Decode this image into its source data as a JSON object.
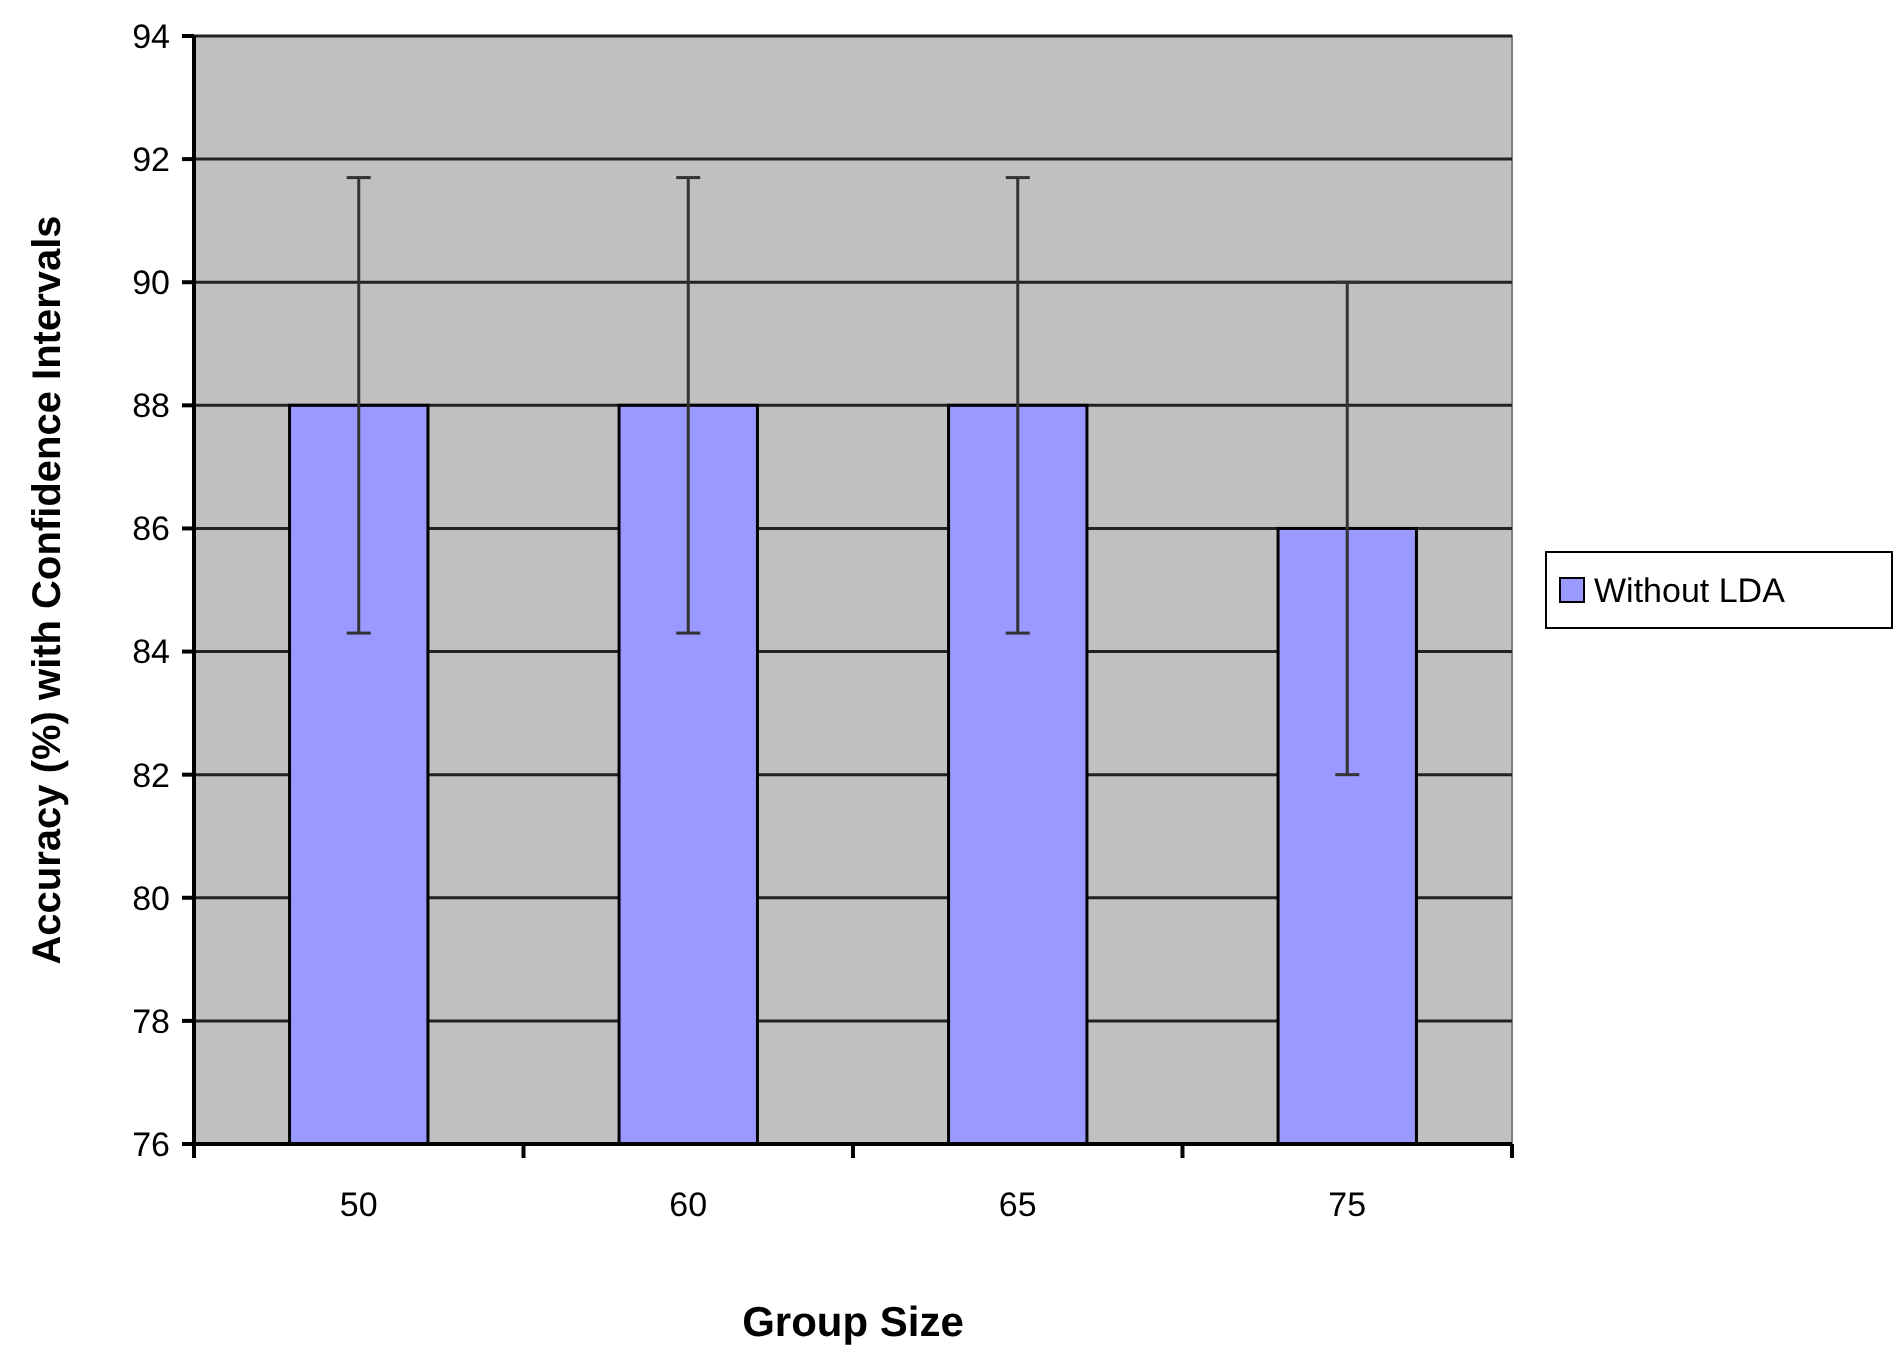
{
  "chart_data": {
    "type": "bar",
    "xlabel": "Group Size",
    "ylabel": "Accuracy (%) with Confidence Intervals",
    "categories": [
      "50",
      "60",
      "65",
      "75"
    ],
    "series": [
      {
        "name": "Without LDA",
        "color": "#9999ff",
        "values": [
          88,
          88,
          88,
          86
        ],
        "errors": [
          3.7,
          3.7,
          3.7,
          4
        ]
      }
    ],
    "ylim": [
      76,
      94
    ],
    "yticks": [
      76,
      78,
      80,
      82,
      84,
      86,
      88,
      90,
      92,
      94
    ],
    "grid": "y",
    "legend": "right"
  }
}
